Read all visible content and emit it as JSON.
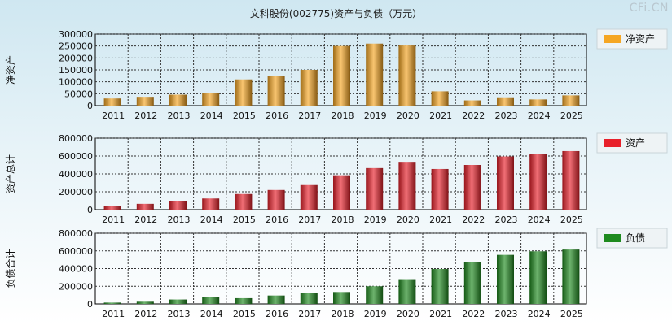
{
  "title": "文科股份(002775)资产与负债（万元）",
  "watermark": "CFi.CN",
  "chart_data": [
    {
      "type": "bar",
      "ylabel": "净资产",
      "legend": "净资产",
      "color": "#f5a623",
      "categories": [
        "2011",
        "2012",
        "2013",
        "2014",
        "2015",
        "2016",
        "2017",
        "2018",
        "2019",
        "2020",
        "2021",
        "2022",
        "2023",
        "2024",
        "2025"
      ],
      "values": [
        30000,
        37000,
        46000,
        52000,
        110000,
        125000,
        150000,
        250000,
        260000,
        252000,
        60000,
        22000,
        35000,
        26000,
        43000
      ],
      "yticks": [
        0,
        50000,
        100000,
        150000,
        200000,
        250000,
        300000
      ],
      "ylim": [
        0,
        300000
      ]
    },
    {
      "type": "bar",
      "ylabel": "资产总计",
      "legend": "资产",
      "color": "#e8202a",
      "categories": [
        "2011",
        "2012",
        "2013",
        "2014",
        "2015",
        "2016",
        "2017",
        "2018",
        "2019",
        "2020",
        "2021",
        "2022",
        "2023",
        "2024",
        "2025"
      ],
      "values": [
        45000,
        65000,
        100000,
        125000,
        175000,
        220000,
        275000,
        385000,
        465000,
        535000,
        455000,
        500000,
        595000,
        620000,
        655000
      ],
      "yticks": [
        0,
        200000,
        400000,
        600000,
        800000
      ],
      "ylim": [
        0,
        800000
      ]
    },
    {
      "type": "bar",
      "ylabel": "负债合计",
      "legend": "负债",
      "color": "#1e8a1e",
      "categories": [
        "2011",
        "2012",
        "2013",
        "2014",
        "2015",
        "2016",
        "2017",
        "2018",
        "2019",
        "2020",
        "2021",
        "2022",
        "2023",
        "2024",
        "2025"
      ],
      "values": [
        15000,
        25000,
        50000,
        75000,
        65000,
        95000,
        120000,
        135000,
        200000,
        280000,
        395000,
        475000,
        555000,
        595000,
        615000
      ],
      "yticks": [
        0,
        200000,
        400000,
        600000,
        800000
      ],
      "ylim": [
        0,
        800000
      ]
    }
  ]
}
